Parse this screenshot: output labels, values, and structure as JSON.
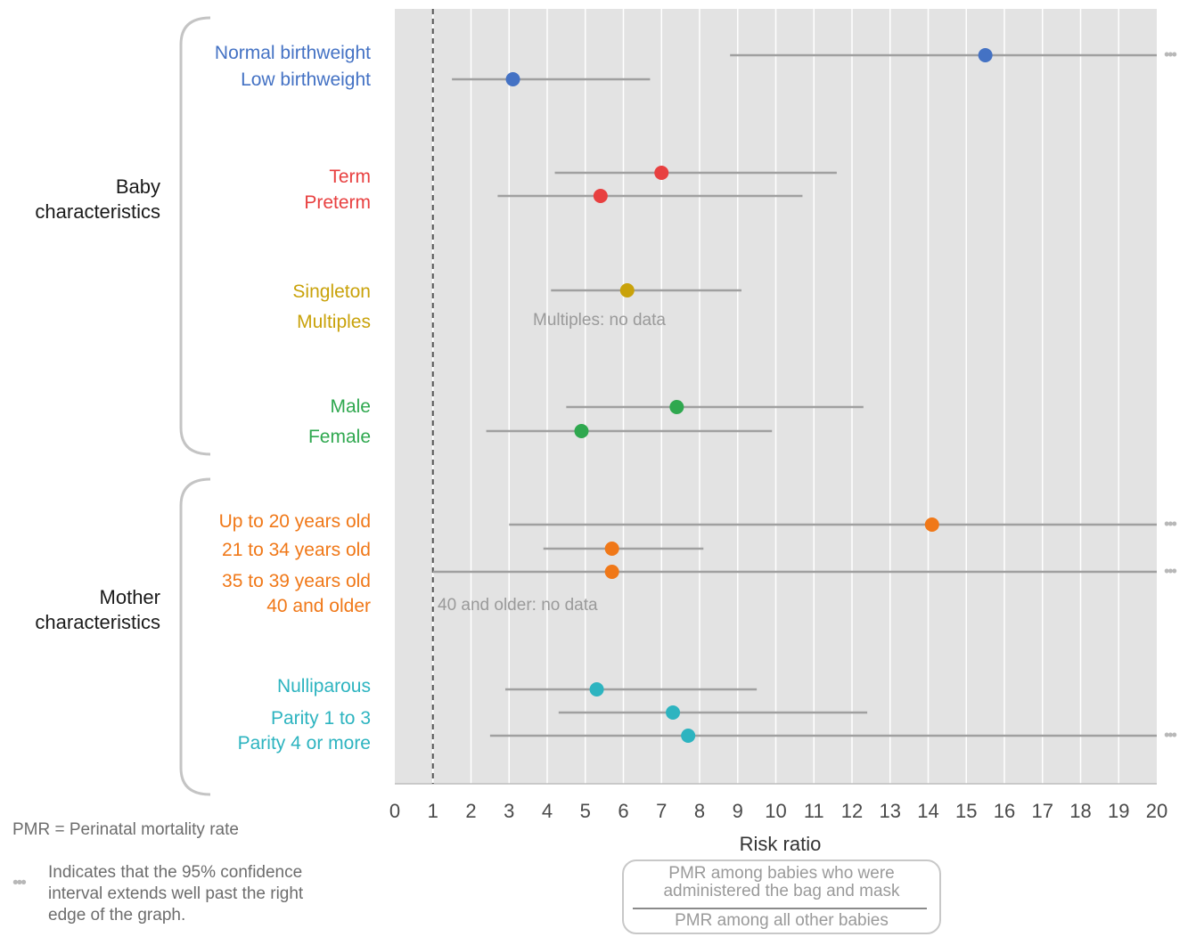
{
  "chart_data": {
    "type": "scatter",
    "subtype": "forest-plot",
    "xlabel": "Risk ratio",
    "xlim": [
      0,
      20
    ],
    "xticks": [
      0,
      1,
      2,
      3,
      4,
      5,
      6,
      7,
      8,
      9,
      10,
      11,
      12,
      13,
      14,
      15,
      16,
      17,
      18,
      19,
      20
    ],
    "reference_line": 1,
    "grid": "vertical",
    "groups": [
      {
        "label": "Baby characteristics",
        "rows": [
          {
            "label": "Normal birthweight",
            "color": "#4472c4",
            "estimate": 15.5,
            "ci": [
              8.8,
              20
            ],
            "ci_extends": true
          },
          {
            "label": "Low birthweight",
            "color": "#4472c4",
            "estimate": 3.1,
            "ci": [
              1.5,
              6.7
            ],
            "ci_extends": false
          },
          {
            "label": "Term",
            "color": "#e84040",
            "estimate": 7.0,
            "ci": [
              4.2,
              11.6
            ],
            "ci_extends": false
          },
          {
            "label": "Preterm",
            "color": "#e84040",
            "estimate": 5.4,
            "ci": [
              2.7,
              10.7
            ],
            "ci_extends": false
          },
          {
            "label": "Singleton",
            "color": "#c9a20a",
            "estimate": 6.1,
            "ci": [
              4.1,
              9.1
            ],
            "ci_extends": false
          },
          {
            "label": "Multiples",
            "color": "#c9a20a",
            "note": "Multiples: no data"
          },
          {
            "label": "Male",
            "color": "#2fa84f",
            "estimate": 7.4,
            "ci": [
              4.5,
              12.3
            ],
            "ci_extends": false
          },
          {
            "label": "Female",
            "color": "#2fa84f",
            "estimate": 4.9,
            "ci": [
              2.4,
              9.9
            ],
            "ci_extends": false
          }
        ]
      },
      {
        "label": "Mother characteristics",
        "rows": [
          {
            "label": "Up to 20 years old",
            "color": "#f07818",
            "estimate": 14.1,
            "ci": [
              3.0,
              20
            ],
            "ci_extends": true
          },
          {
            "label": "21 to 34 years old",
            "color": "#f07818",
            "estimate": 5.7,
            "ci": [
              3.9,
              8.1
            ],
            "ci_extends": false
          },
          {
            "label": "35 to 39 years old",
            "color": "#f07818",
            "estimate": 5.7,
            "ci": [
              1.0,
              20
            ],
            "ci_extends": true
          },
          {
            "label": "40 and older",
            "color": "#f07818",
            "note": "40 and older: no data"
          },
          {
            "label": "Nulliparous",
            "color": "#2db4c0",
            "estimate": 5.3,
            "ci": [
              2.9,
              9.5
            ],
            "ci_extends": false
          },
          {
            "label": "Parity 1 to 3",
            "color": "#2db4c0",
            "estimate": 7.3,
            "ci": [
              4.3,
              12.4
            ],
            "ci_extends": false
          },
          {
            "label": "Parity 4 or more",
            "color": "#2db4c0",
            "estimate": 7.7,
            "ci": [
              2.5,
              20
            ],
            "ci_extends": true
          }
        ]
      }
    ]
  },
  "notes": {
    "pmr": "PMR = Perinatal mortality rate",
    "dots_symbol": "•••",
    "ci_line1": "Indicates that the 95% confidence",
    "ci_line2": "interval extends well past the right",
    "ci_line3": "edge of the graph."
  },
  "formula": {
    "numerator_line1": "PMR among babies who were",
    "numerator_line2": "administered the bag and mask",
    "denominator": "PMR among all other babies"
  },
  "colors": {
    "plot_bg": "#e3e3e3",
    "grid": "#ffffff",
    "ci_line": "#a0a0a0",
    "ref_line": "#555555",
    "tick_text": "#4a4a4a",
    "note_text": "#9a9a9a",
    "brace": "#c4c4c4"
  }
}
